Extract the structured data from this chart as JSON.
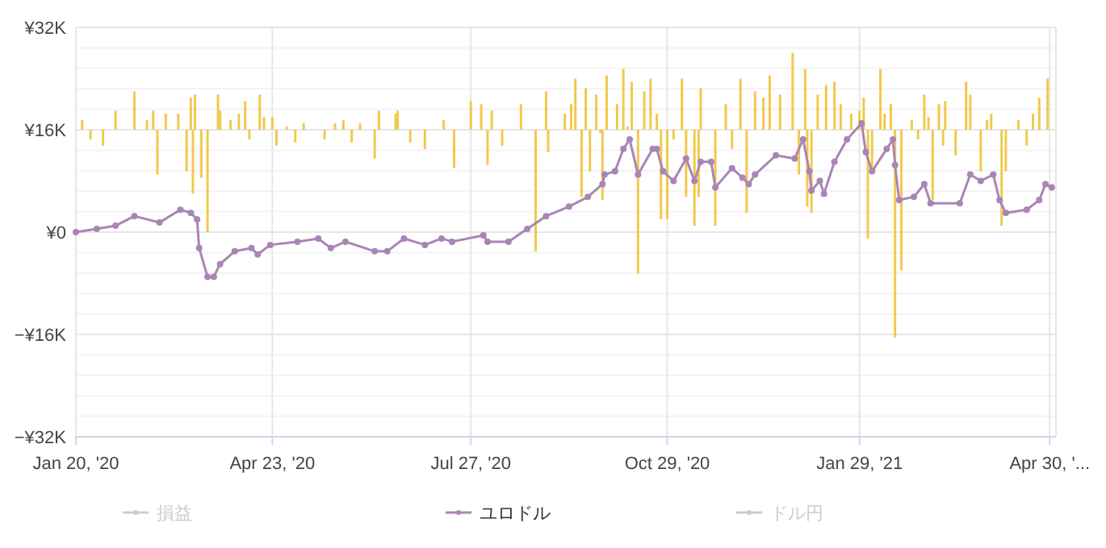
{
  "chart_data": {
    "type": "line",
    "xlim": [
      "2020-01-20",
      "2021-05-03"
    ],
    "xticks": [
      {
        "value": "2020-01-20",
        "label": "Jan 20, '20"
      },
      {
        "value": "2020-04-23",
        "label": "Apr 23, '20"
      },
      {
        "value": "2020-07-27",
        "label": "Jul 27, '20"
      },
      {
        "value": "2020-10-29",
        "label": "Oct 29, '20"
      },
      {
        "value": "2021-01-29",
        "label": "Jan 29, '21"
      },
      {
        "value": "2021-04-30",
        "label": "Apr 30, '..."
      }
    ],
    "ylim": [
      -32000,
      32000
    ],
    "yticks": [
      {
        "value": -32000,
        "label": "−¥32K"
      },
      {
        "value": -28800,
        "label": null
      },
      {
        "value": -25600,
        "label": null
      },
      {
        "value": -22400,
        "label": null
      },
      {
        "value": -19200,
        "label": null
      },
      {
        "value": -16000,
        "label": "−¥16K"
      },
      {
        "value": -12800,
        "label": null
      },
      {
        "value": -9600,
        "label": null
      },
      {
        "value": -6400,
        "label": null
      },
      {
        "value": -3200,
        "label": null
      },
      {
        "value": 0,
        "label": "¥0"
      },
      {
        "value": 3200,
        "label": null
      },
      {
        "value": 6400,
        "label": null
      },
      {
        "value": 9600,
        "label": null
      },
      {
        "value": 12800,
        "label": null
      },
      {
        "value": 16000,
        "label": "¥16K"
      },
      {
        "value": 19200,
        "label": null
      },
      {
        "value": 22400,
        "label": null
      },
      {
        "value": 25600,
        "label": null
      },
      {
        "value": 28800,
        "label": null
      },
      {
        "value": 32000,
        "label": "¥32K"
      }
    ],
    "grid": true,
    "legend": "bottom",
    "marker": "circle",
    "annotations": [
      "損益",
      "ドル円"
    ],
    "series": [
      {
        "type": "bar",
        "color": "#f2c94c",
        "x": [
          "2020-01-23",
          "2020-01-27",
          "2020-02-02",
          "2020-02-08",
          "2020-02-17",
          "2020-02-23",
          "2020-02-26",
          "2020-02-28",
          "2020-03-03",
          "2020-03-09",
          "2020-03-13",
          "2020-03-15",
          "2020-03-16",
          "2020-03-17",
          "2020-03-20",
          "2020-03-23",
          "2020-03-28",
          "2020-03-29",
          "2020-04-03",
          "2020-04-07",
          "2020-04-10",
          "2020-04-12",
          "2020-04-17",
          "2020-04-19",
          "2020-04-23",
          "2020-04-25",
          "2020-04-30",
          "2020-05-04",
          "2020-05-08",
          "2020-05-18",
          "2020-05-23",
          "2020-05-27",
          "2020-05-31",
          "2020-06-04",
          "2020-06-11",
          "2020-06-13",
          "2020-06-21",
          "2020-06-22",
          "2020-06-28",
          "2020-07-05",
          "2020-07-14",
          "2020-07-19",
          "2020-07-27",
          "2020-08-01",
          "2020-08-04",
          "2020-08-06",
          "2020-08-11",
          "2020-08-20",
          "2020-08-27",
          "2020-09-01",
          "2020-09-02",
          "2020-09-10",
          "2020-09-13",
          "2020-09-15",
          "2020-09-18",
          "2020-09-20",
          "2020-09-22",
          "2020-09-25",
          "2020-09-27",
          "2020-09-28",
          "2020-09-30",
          "2020-10-05",
          "2020-10-08",
          "2020-10-10",
          "2020-10-12",
          "2020-10-15",
          "2020-10-18",
          "2020-10-21",
          "2020-10-24",
          "2020-10-26",
          "2020-10-29",
          "2020-11-01",
          "2020-11-05",
          "2020-11-07",
          "2020-11-11",
          "2020-11-13",
          "2020-11-14",
          "2020-11-21",
          "2020-11-26",
          "2020-11-29",
          "2020-12-03",
          "2020-12-06",
          "2020-12-10",
          "2020-12-14",
          "2020-12-17",
          "2020-12-22",
          "2020-12-28",
          "2020-12-31",
          "2021-01-03",
          "2021-01-04",
          "2021-01-06",
          "2021-01-09",
          "2021-01-13",
          "2021-01-17",
          "2021-01-20",
          "2021-01-25",
          "2021-01-29",
          "2021-01-31",
          "2021-02-02",
          "2021-02-04",
          "2021-02-08",
          "2021-02-10",
          "2021-02-13",
          "2021-02-15",
          "2021-02-18",
          "2021-02-23",
          "2021-02-26",
          "2021-03-01",
          "2021-03-03",
          "2021-03-05",
          "2021-03-08",
          "2021-03-10",
          "2021-03-11",
          "2021-03-16",
          "2021-03-21",
          "2021-03-23",
          "2021-03-28",
          "2021-03-31",
          "2021-04-02",
          "2021-04-07",
          "2021-04-09",
          "2021-04-15",
          "2021-04-19",
          "2021-04-22",
          "2021-04-25",
          "2021-04-29"
        ],
        "values": [
          1500,
          -1500,
          -2500,
          3000,
          6000,
          1500,
          3000,
          -7000,
          2500,
          2500,
          -6500,
          5000,
          -10000,
          5500,
          -7500,
          -16000,
          5500,
          3000,
          1500,
          2500,
          4500,
          -1500,
          5500,
          2000,
          2000,
          -2500,
          500,
          -2000,
          1000,
          -1500,
          1000,
          1500,
          -2000,
          1000,
          -4500,
          3000,
          2500,
          3000,
          -2000,
          -3000,
          1500,
          -6000,
          4500,
          4000,
          -5500,
          3000,
          -2500,
          4000,
          -19000,
          6000,
          -3500,
          2500,
          4000,
          8000,
          -10500,
          6500,
          -6500,
          5500,
          -500,
          -11000,
          8500,
          4000,
          9500,
          500,
          7500,
          -22500,
          6000,
          8000,
          2500,
          -14000,
          -14000,
          -1500,
          8000,
          -10500,
          -15000,
          -10500,
          6500,
          -15000,
          4000,
          -3000,
          8000,
          -13000,
          6000,
          5000,
          8500,
          5500,
          12000,
          -7000,
          9500,
          -12000,
          -13000,
          5500,
          7000,
          7500,
          4000,
          2500,
          3000,
          5000,
          -17000,
          -6500,
          9500,
          2500,
          4000,
          -32500,
          -22000,
          1500,
          -1500,
          5500,
          2000,
          -11000,
          4000,
          -2500,
          4500,
          -4000,
          7500,
          5500,
          -6500,
          1500,
          2500,
          -15000,
          -6500,
          1500,
          -2500,
          2500,
          5000,
          8000
        ],
        "base": [
          16000,
          16000,
          16000,
          16000,
          16000,
          16000,
          16000,
          16000,
          16000,
          16000,
          16000,
          16000,
          16000,
          16000,
          16000,
          16000,
          16000,
          16000,
          16000,
          16000,
          16000,
          16000,
          16000,
          16000,
          16000,
          16000,
          16000,
          16000,
          16000,
          16000,
          16000,
          16000,
          16000,
          16000,
          16000,
          16000,
          16000,
          16000,
          16000,
          16000,
          16000,
          16000,
          16000,
          16000,
          16000,
          16000,
          16000,
          16000,
          16000,
          16000,
          16000,
          16000,
          16000,
          16000,
          16000,
          16000,
          16000,
          16000,
          16000,
          16000,
          16000,
          16000,
          16000,
          16000,
          16000,
          16000,
          16000,
          16000,
          16000,
          16000,
          16000,
          16000,
          16000,
          16000,
          16000,
          16000,
          16000,
          16000,
          16000,
          16000,
          16000,
          16000,
          16000,
          16000,
          16000,
          16000,
          16000,
          16000,
          16000,
          16000,
          16000,
          16000,
          16000,
          16000,
          16000,
          16000,
          16000,
          16000,
          16000,
          16000,
          16000,
          16000,
          16000,
          16000,
          16000,
          16000,
          16000,
          16000,
          16000,
          16000,
          16000,
          16000,
          16000,
          16000,
          16000,
          16000,
          16000,
          16000,
          16000,
          16000,
          16000,
          16000,
          16000,
          16000,
          16000,
          16000
        ]
      },
      {
        "name": "ユロドル",
        "color": "#a985b5",
        "x": [
          "2020-01-20",
          "2020-01-30",
          "2020-02-08",
          "2020-02-17",
          "2020-02-29",
          "2020-03-10",
          "2020-03-15",
          "2020-03-18",
          "2020-03-19",
          "2020-03-23",
          "2020-03-26",
          "2020-03-29",
          "2020-04-05",
          "2020-04-13",
          "2020-04-16",
          "2020-04-22",
          "2020-05-05",
          "2020-05-15",
          "2020-05-21",
          "2020-05-28",
          "2020-06-11",
          "2020-06-17",
          "2020-06-25",
          "2020-07-05",
          "2020-07-13",
          "2020-07-18",
          "2020-08-02",
          "2020-08-04",
          "2020-08-14",
          "2020-08-23",
          "2020-09-01",
          "2020-09-12",
          "2020-09-21",
          "2020-09-28",
          "2020-09-29",
          "2020-10-04",
          "2020-10-08",
          "2020-10-11",
          "2020-10-15",
          "2020-10-22",
          "2020-10-24",
          "2020-10-27",
          "2020-11-01",
          "2020-11-07",
          "2020-11-11",
          "2020-11-14",
          "2020-11-19",
          "2020-11-21",
          "2020-11-29",
          "2020-12-04",
          "2020-12-07",
          "2020-12-10",
          "2020-12-20",
          "2020-12-29",
          "2021-01-02",
          "2021-01-05",
          "2021-01-06",
          "2021-01-10",
          "2021-01-12",
          "2021-01-17",
          "2021-01-23",
          "2021-01-30",
          "2021-02-01",
          "2021-02-04",
          "2021-02-11",
          "2021-02-14",
          "2021-02-15",
          "2021-02-17",
          "2021-02-24",
          "2021-03-01",
          "2021-03-04",
          "2021-03-18",
          "2021-03-23",
          "2021-03-28",
          "2021-04-03",
          "2021-04-06",
          "2021-04-09",
          "2021-04-19",
          "2021-04-25",
          "2021-04-28",
          "2021-05-01"
        ],
        "values": [
          0,
          500,
          1000,
          2500,
          1500,
          3500,
          3000,
          2000,
          -2500,
          -7000,
          -7000,
          -5000,
          -3000,
          -2500,
          -3500,
          -2000,
          -1500,
          -1000,
          -2500,
          -1500,
          -3000,
          -3000,
          -1000,
          -2000,
          -1000,
          -1500,
          -500,
          -1500,
          -1500,
          500,
          2500,
          4000,
          5500,
          7500,
          9000,
          9500,
          13000,
          14500,
          9000,
          13000,
          13000,
          9500,
          8000,
          11500,
          8000,
          11000,
          11000,
          7000,
          10000,
          8500,
          7500,
          9000,
          12000,
          11500,
          14500,
          9500,
          6500,
          8000,
          6000,
          11000,
          14500,
          17000,
          12500,
          9500,
          13000,
          14500,
          10500,
          5000,
          5500,
          7500,
          4500,
          4500,
          9000,
          8000,
          9000,
          5000,
          3000,
          3500,
          5000,
          7500,
          7000
        ]
      }
    ]
  }
}
